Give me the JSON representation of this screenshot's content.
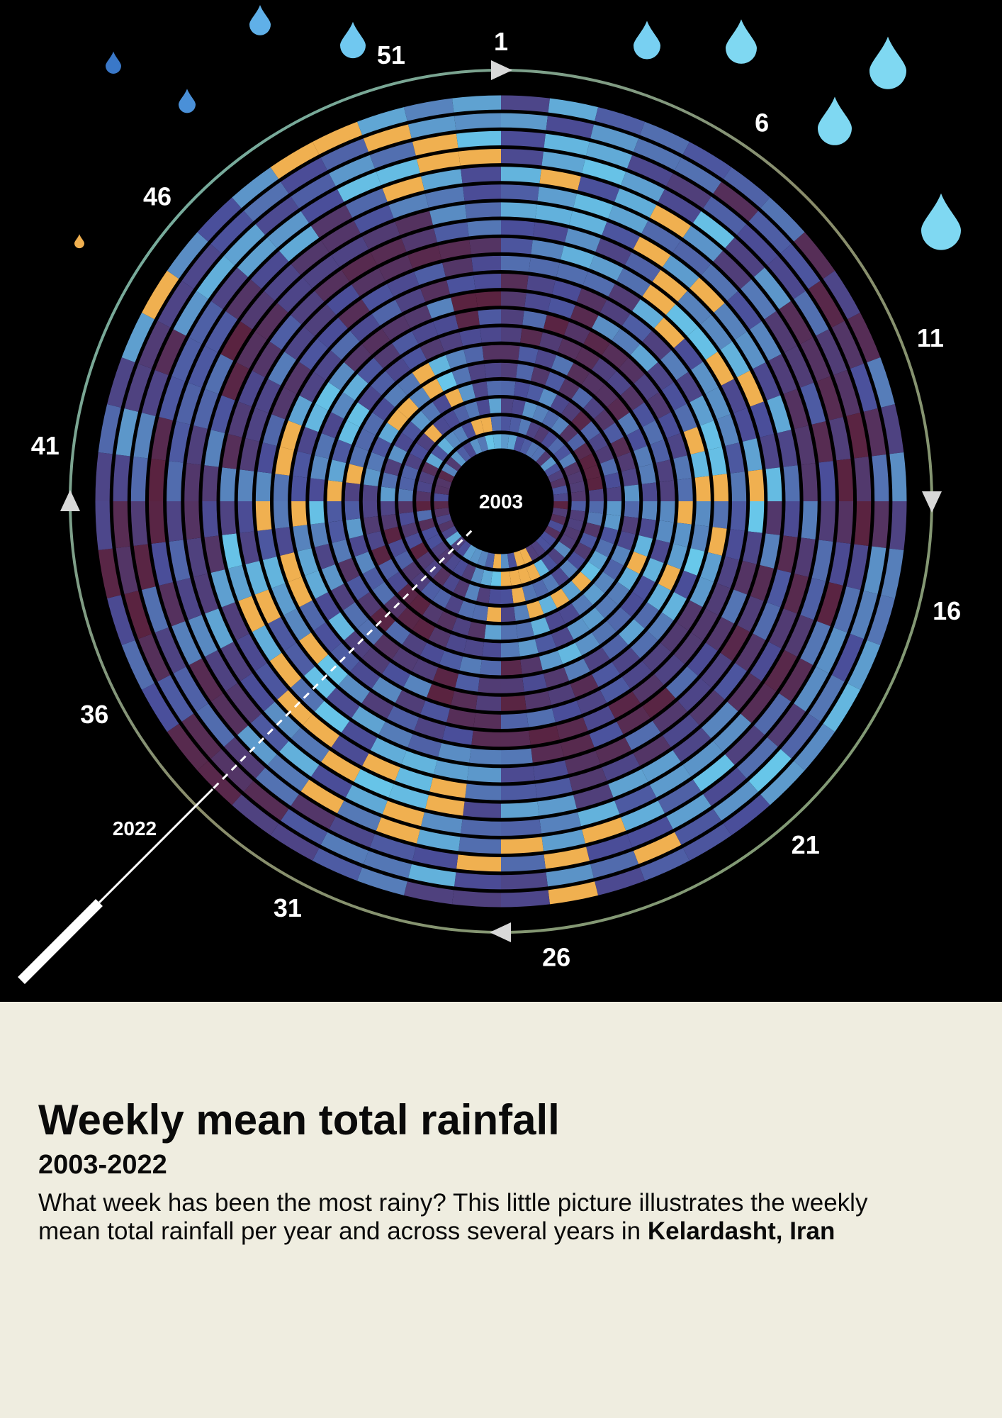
{
  "colors": {
    "background_top": "#000000",
    "background_bottom": "#efede0",
    "low_rain": "#5a2340",
    "mid_rain": "#4a4e9a",
    "high_rain": "#6ad0f0",
    "extreme_rain": "#f0b050",
    "drop": "#7fd8f2"
  },
  "chart_data": {
    "type": "radial-heatmap",
    "center_label": "2003",
    "outer_year_label": "2022",
    "years": [
      2003,
      2022
    ],
    "week_tick_labels": [
      "1",
      "6",
      "11",
      "16",
      "21",
      "26",
      "31",
      "36",
      "41",
      "46",
      "51"
    ],
    "legend": "raindrops (size indicates rainfall amount)"
  },
  "text": {
    "title": "Weekly mean total rainfall",
    "subtitle": "2003-2022",
    "description": "What week has been the most rainy? This little picture illustrates the weekly mean total rainfall per year and across several years in ",
    "location": "Kelardasht, Iran"
  }
}
